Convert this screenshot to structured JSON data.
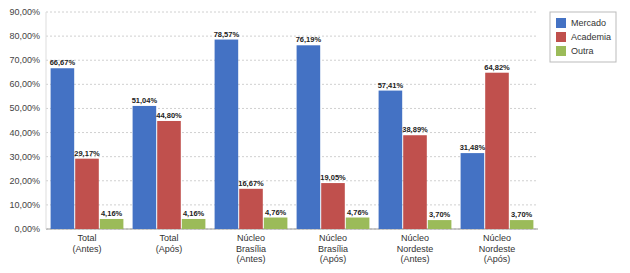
{
  "chart_data": {
    "type": "bar",
    "categories": [
      "Total\n(Antes)",
      "Total\n(Após)",
      "Núcleo\nBrasília\n(Antes)",
      "Núcleo\nBrasília\n(Após)",
      "Núcleo\nNordeste\n(Antes)",
      "Núcleo\nNordeste\n(Após)"
    ],
    "series": [
      {
        "name": "Mercado",
        "color": "#4472C4",
        "values": [
          66.67,
          51.04,
          78.57,
          76.19,
          57.41,
          31.48
        ],
        "value_labels": [
          "66,67%",
          "51,04%",
          "78,57%",
          "76,19%",
          "57,41%",
          "31,48%"
        ]
      },
      {
        "name": "Academia",
        "color": "#C0504D",
        "values": [
          29.17,
          44.8,
          16.67,
          19.05,
          38.89,
          64.82
        ],
        "value_labels": [
          "29,17%",
          "44,80%",
          "16,67%",
          "19,05%",
          "38,89%",
          "64,82%"
        ]
      },
      {
        "name": "Outra",
        "color": "#9BBB59",
        "values": [
          4.16,
          4.16,
          4.76,
          4.76,
          3.7,
          3.7
        ],
        "value_labels": [
          "4,16%",
          "4,16%",
          "4,76%",
          "4,76%",
          "3,70%",
          "3,70%"
        ]
      }
    ],
    "ylim": [
      0,
      90
    ],
    "yticks": [
      {
        "value": 0,
        "label": "0,00%"
      },
      {
        "value": 10,
        "label": "10,00%"
      },
      {
        "value": 20,
        "label": "20,00%"
      },
      {
        "value": 30,
        "label": "30,00%"
      },
      {
        "value": 40,
        "label": "40,00%"
      },
      {
        "value": 50,
        "label": "50,00%"
      },
      {
        "value": 60,
        "label": "60,00%"
      },
      {
        "value": 70,
        "label": "70,00%"
      },
      {
        "value": 80,
        "label": "80,00%"
      },
      {
        "value": 90,
        "label": "90,00%"
      }
    ],
    "grid": true,
    "legend": "upper right",
    "data_labels": true
  }
}
